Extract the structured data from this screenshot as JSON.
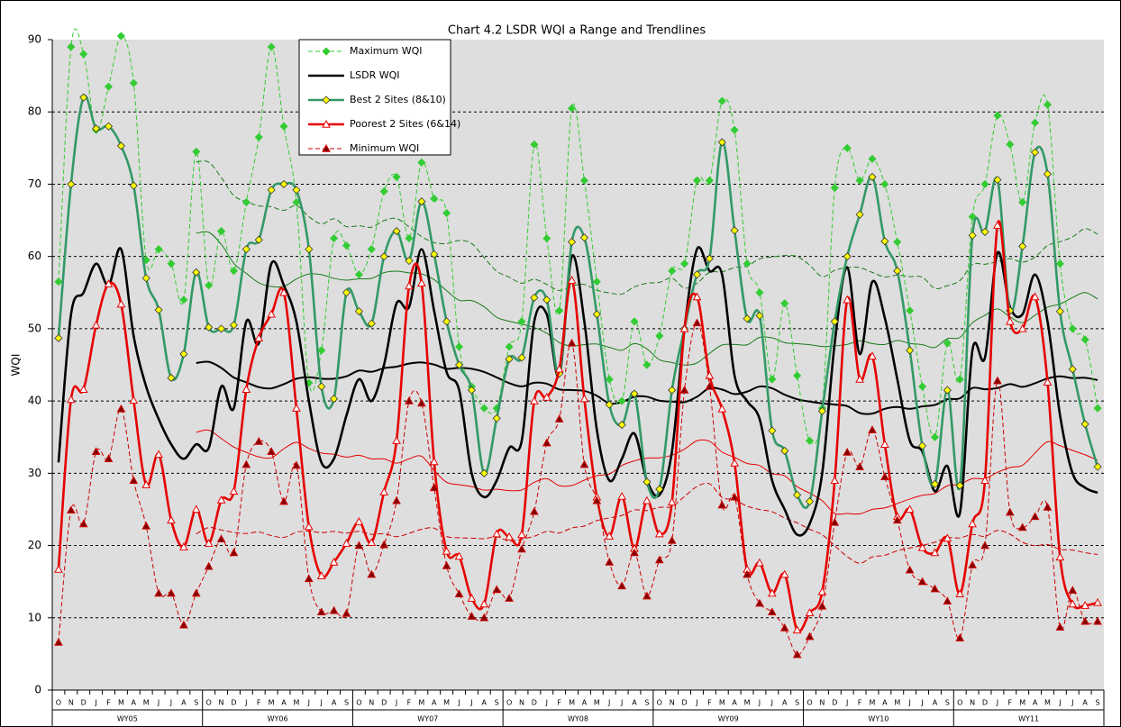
{
  "chart_data": {
    "type": "line",
    "title": "Chart 4.2 LSDR WQI a Range and Trendlines",
    "y_label": "WQI",
    "categories": [
      "O",
      "N",
      "D",
      "J",
      "F",
      "M",
      "A",
      "M",
      "J",
      "J",
      "A",
      "S",
      "O",
      "N",
      "D",
      "J",
      "F",
      "M",
      "A",
      "M",
      "J",
      "J",
      "A",
      "S",
      "O",
      "N",
      "D",
      "J",
      "F",
      "M",
      "A",
      "M",
      "J",
      "J",
      "A",
      "S",
      "O",
      "N",
      "D",
      "J",
      "F",
      "M",
      "A",
      "M",
      "J",
      "J",
      "A",
      "S",
      "O",
      "N",
      "D",
      "J",
      "F",
      "M",
      "A",
      "M",
      "J",
      "J",
      "A",
      "S",
      "O",
      "N",
      "D",
      "J",
      "F",
      "M",
      "A",
      "M",
      "J",
      "J",
      "A",
      "S",
      "O",
      "N",
      "D",
      "J",
      "F",
      "M",
      "A",
      "M",
      "J",
      "J",
      "A",
      "S"
    ],
    "group_labels": [
      "WY05",
      "WY06",
      "WY07",
      "WY08",
      "WY09",
      "WY10",
      "WY11"
    ],
    "ylim": [
      0,
      90
    ],
    "yticks": [
      0,
      10,
      20,
      30,
      40,
      50,
      60,
      70,
      80,
      90
    ],
    "grid": true,
    "trendline": {
      "kind": "moving_average",
      "period": 12
    },
    "series": [
      {
        "name": "Maximum WQI",
        "color": "#33cc33",
        "marker_color": "#33cc33",
        "marker": "diamond",
        "dash": true,
        "values": [
          56.5,
          89,
          88,
          77.5,
          83.5,
          90.5,
          84,
          59.5,
          61,
          59,
          54,
          74.5,
          56,
          63.5,
          58,
          67.5,
          76.5,
          89,
          78,
          67.5,
          42.5,
          47,
          62.5,
          61.5,
          57.5,
          61,
          69,
          71,
          62.5,
          73,
          68,
          66,
          47.5,
          42,
          39,
          39,
          47.5,
          51,
          75.5,
          62.5,
          52.5,
          80.5,
          70.5,
          56.5,
          43,
          40,
          51,
          45,
          49,
          58,
          59,
          70.5,
          70.5,
          81.5,
          77.5,
          59,
          55,
          43,
          53.5,
          43.5,
          34.5,
          39,
          69.5,
          75,
          70.5,
          73.5,
          70,
          62,
          52.5,
          42,
          35,
          48,
          43,
          65.5,
          70,
          79.5,
          75.5,
          67.5,
          78.5,
          81,
          59,
          50,
          48.5,
          39
        ]
      },
      {
        "name": "LSDR WQI",
        "color": "#000000",
        "marker_color": "#000000",
        "marker": "none",
        "dash": false,
        "values": [
          31.5,
          52,
          55,
          59,
          56,
          61,
          49,
          42,
          37.5,
          34,
          32,
          34,
          33.5,
          42,
          39,
          51,
          48,
          59,
          56,
          51,
          40,
          31.5,
          32,
          38,
          43,
          40,
          45,
          53.5,
          53,
          61,
          52.5,
          44,
          41.5,
          30,
          26.7,
          29,
          33.5,
          34.5,
          51,
          52,
          43.5,
          60,
          51,
          36,
          29,
          32,
          35.5,
          29,
          27,
          33,
          50,
          61,
          58,
          57.5,
          43.5,
          40,
          37.5,
          29,
          25,
          21.5,
          23,
          30,
          48,
          58.5,
          46.5,
          56.5,
          51.5,
          43,
          34.5,
          33,
          27.5,
          31,
          24.5,
          47,
          46,
          60.5,
          53,
          52,
          57.5,
          51,
          38,
          30,
          28,
          27.3
        ]
      },
      {
        "name": "Best 2 Sites (8&10)",
        "color": "#339966",
        "marker_color": "#ffff00",
        "marker": "diamond",
        "dash": false,
        "values": [
          48.7,
          70,
          82,
          77.7,
          78,
          75.3,
          69.8,
          57,
          52.6,
          43.2,
          46.5,
          57.8,
          50.2,
          50,
          50.5,
          61,
          62.3,
          69.2,
          70,
          69.2,
          61,
          42,
          40.3,
          55,
          52.4,
          50.7,
          60,
          63.5,
          59.4,
          67.6,
          60.3,
          51,
          45,
          41.5,
          30,
          37.6,
          45.8,
          46,
          54.3,
          54,
          43.8,
          62,
          62.6,
          52,
          39.5,
          36.7,
          41,
          28.8,
          27.8,
          41.5,
          50,
          57.5,
          59.7,
          75.8,
          63.6,
          51.4,
          51.8,
          35.9,
          33.1,
          27,
          26.1,
          38.6,
          51,
          60,
          65.8,
          71,
          62.1,
          58,
          47,
          33.8,
          28.5,
          41.5,
          28.3,
          62.9,
          63.4,
          70.6,
          52.5,
          61.4,
          74.4,
          71.4,
          52.4,
          44.4,
          36.8,
          30.9
        ]
      },
      {
        "name": "Poorest 2 Sites (6&14)",
        "color": "#e60000",
        "marker_color": "#ffffff",
        "marker": "triangle",
        "dash": false,
        "values": [
          16.7,
          40.2,
          41.6,
          50.5,
          56.2,
          53.4,
          40.1,
          28.4,
          32.6,
          23.5,
          19.8,
          25,
          20.3,
          26.3,
          27.5,
          41.6,
          48.7,
          52,
          55,
          39,
          22.6,
          15.8,
          17.7,
          20.3,
          23.3,
          20.4,
          27.4,
          34.5,
          55.9,
          56.3,
          31.6,
          19.2,
          18.5,
          12.7,
          11.9,
          21.6,
          21.2,
          21.5,
          40,
          40.5,
          44.4,
          56.7,
          40.3,
          26.7,
          21.3,
          26.8,
          19.6,
          26.2,
          21.6,
          26,
          50,
          54.4,
          43.5,
          38.9,
          31.4,
          16.7,
          17.6,
          13.4,
          16,
          8.3,
          10.7,
          13.6,
          29,
          54,
          43,
          46.2,
          34,
          24,
          25,
          19.7,
          19,
          21,
          13.3,
          23,
          29,
          64.3,
          51,
          50,
          54.4,
          42.6,
          18.4,
          11.9,
          11.7,
          12.1
        ]
      },
      {
        "name": "Minimum WQI",
        "color": "#cc0000",
        "marker_color": "#800000",
        "marker": "triangle",
        "dash": true,
        "values": [
          6.6,
          24.9,
          23,
          33,
          32,
          38.9,
          29,
          22.7,
          13.4,
          13.4,
          9,
          13.4,
          17.1,
          20.9,
          19,
          31.2,
          34.4,
          33,
          26.1,
          31.1,
          15.4,
          10.8,
          11,
          10.6,
          20,
          16,
          20.1,
          26.2,
          40,
          39.7,
          28,
          17.2,
          13.3,
          10.2,
          10,
          13.9,
          12.7,
          19.5,
          24.7,
          34.2,
          37.5,
          48,
          31.2,
          26.2,
          17.7,
          14.4,
          19,
          13,
          18,
          20.7,
          41.5,
          50.8,
          42,
          25.6,
          26.7,
          16,
          12,
          10.8,
          8.6,
          4.9,
          7.4,
          11.6,
          23.2,
          32.9,
          30.9,
          36,
          29.5,
          23.5,
          16.6,
          15,
          14,
          12.3,
          7.2,
          17.3,
          20,
          42.8,
          24.6,
          22.5,
          24,
          25.3,
          8.7,
          13.8,
          9.5,
          9.5
        ]
      }
    ]
  }
}
